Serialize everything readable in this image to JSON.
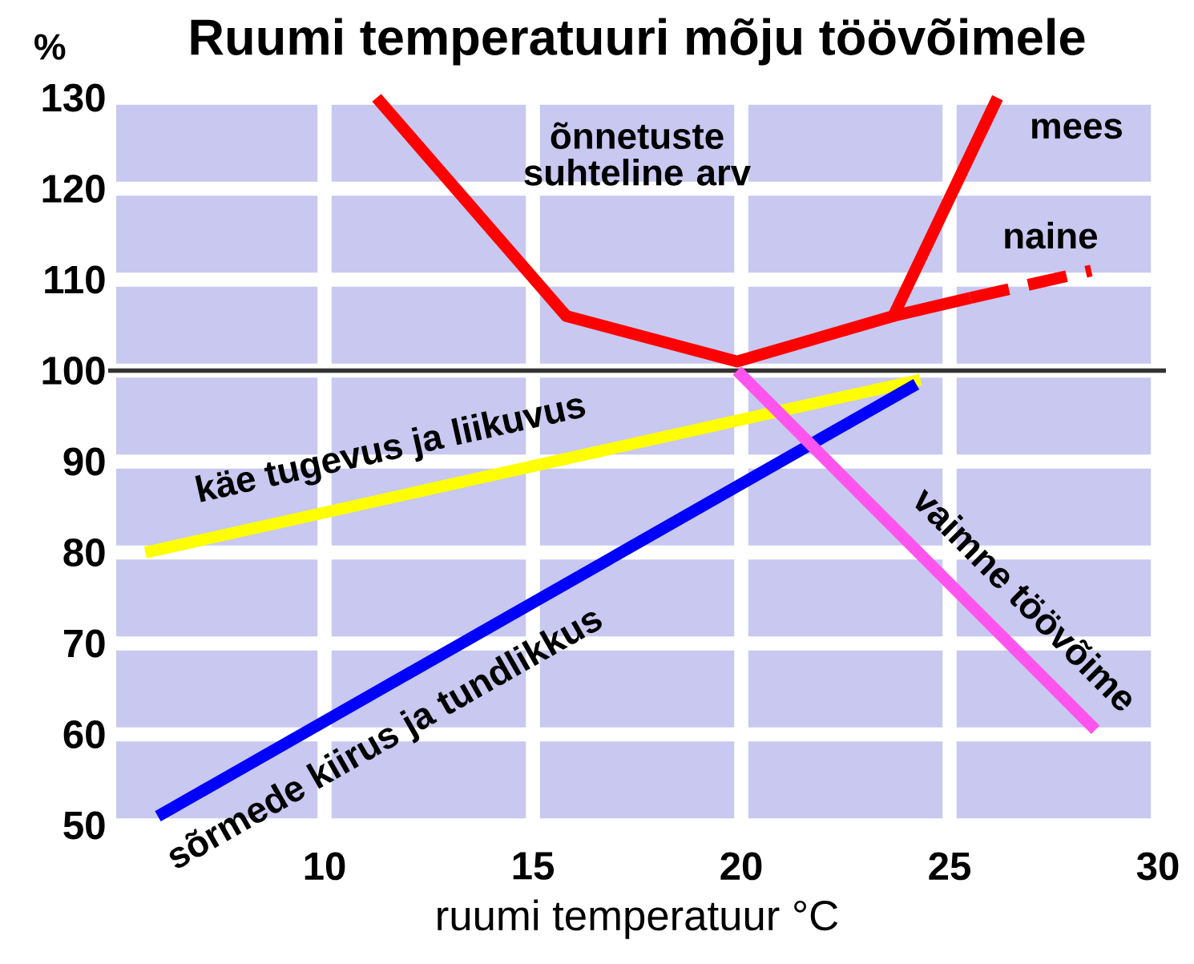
{
  "chart_data": {
    "type": "line",
    "title": "Ruumi temperatuuri mõju töövõimele",
    "xlabel": "ruumi temperatuur °C",
    "ylabel": "%",
    "annotations": [
      "õnnetuste suhteline arv"
    ],
    "xlim": [
      5,
      30
    ],
    "xticks": [
      10,
      15,
      20,
      25,
      30
    ],
    "ylim": [
      50,
      130
    ],
    "yticks": [
      50,
      60,
      70,
      80,
      90,
      100,
      110,
      120,
      130
    ],
    "grid": true,
    "legend": false,
    "marker": "none",
    "ref_lines": [
      {
        "axis": "y",
        "value": 100,
        "color": "#333333"
      }
    ],
    "series": [
      {
        "name": "mees",
        "color": "#ff0000",
        "x": [
          11.25,
          15.8,
          19.9,
          23.65,
          26.15
        ],
        "values": [
          130,
          106,
          101,
          106,
          130
        ]
      },
      {
        "name": "naine",
        "color": "#ff0000",
        "x": [
          23.65,
          25.5
        ],
        "values": [
          106,
          108
        ]
      },
      {
        "color": "#ff0000",
        "line_style": "dashed",
        "x": [
          25.5,
          28.4
        ],
        "values": [
          108,
          111
        ]
      },
      {
        "name": "käe tugevus ja liikuvus",
        "color": "#ffff00",
        "x": [
          5.7,
          24.3
        ],
        "values": [
          80,
          99
        ]
      },
      {
        "name": "sõrmede kiirus ja tundlikkus",
        "color": "#0000ff",
        "x": [
          6,
          24.2
        ],
        "values": [
          51,
          98.5
        ]
      },
      {
        "name": "vaimne töövõime",
        "color": "#ff55ee",
        "x": [
          19.9,
          28.5
        ],
        "values": [
          100,
          60.5
        ]
      }
    ]
  }
}
